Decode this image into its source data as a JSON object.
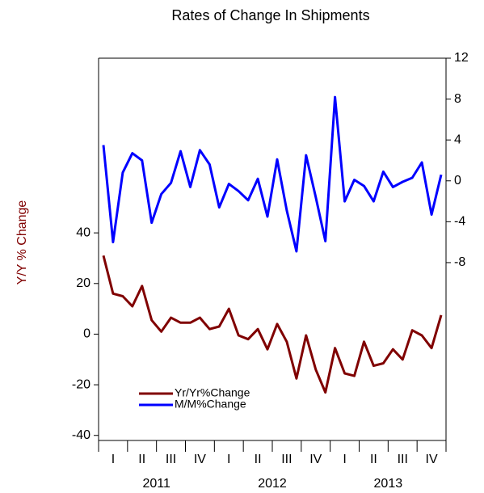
{
  "chart_data": {
    "type": "line",
    "title": "Rates of Change In Shipments",
    "y_label": "Y/Y % Change",
    "categories": [
      null,
      null,
      null,
      null,
      null,
      null,
      null,
      null,
      null,
      null,
      null,
      null,
      null,
      null,
      null,
      null,
      null,
      null,
      null,
      null,
      null,
      null,
      null,
      null,
      null,
      null,
      null,
      null,
      null,
      null,
      null,
      null,
      null,
      null,
      null,
      null
    ],
    "quarters": [
      "I",
      "II",
      "III",
      "IV",
      "I",
      "II",
      "III",
      "IV",
      "I",
      "II",
      "III",
      "IV"
    ],
    "years": [
      "2011",
      "2012",
      "2013"
    ],
    "series": [
      {
        "name": "Yr/Yr%Change",
        "color": "#800000",
        "axis": "y",
        "values": [
          31,
          16,
          15,
          11,
          19,
          5.5,
          1,
          6.5,
          4.5,
          4.5,
          6.5,
          2,
          3,
          10,
          -0.5,
          -2,
          2,
          -6,
          4,
          -3,
          -17.5,
          -0.5,
          -14,
          -23,
          -5.5,
          -15.5,
          -16.5,
          -3,
          -12.5,
          -11.5,
          -6,
          -10,
          1.5,
          -0.5,
          -5.5,
          7.5
        ]
      },
      {
        "name": "M/M%Change",
        "color": "#0000ff",
        "axis": "y2",
        "values": [
          3.5,
          -6,
          0.8,
          2.7,
          2,
          -4.1,
          -1.3,
          -0.2,
          2.9,
          -0.6,
          3,
          1.6,
          -2.6,
          -0.3,
          -1,
          -1.9,
          0.2,
          -3.5,
          2.1,
          -2.9,
          -6.9,
          2.5,
          -1.6,
          -5.9,
          8.2,
          -2,
          0.1,
          -0.5,
          -2,
          0.9,
          -0.6,
          -0.1,
          0.3,
          1.8,
          -3.3,
          0.6
        ]
      }
    ],
    "ylim": [
      -42,
      109
    ],
    "yticks": [
      -40,
      -20,
      0,
      20,
      40
    ],
    "y2lim": [
      -25.4,
      12
    ],
    "y2ticks": [
      -8,
      -4,
      0,
      4,
      8,
      12
    ],
    "legend": "lower left",
    "grid": false
  }
}
